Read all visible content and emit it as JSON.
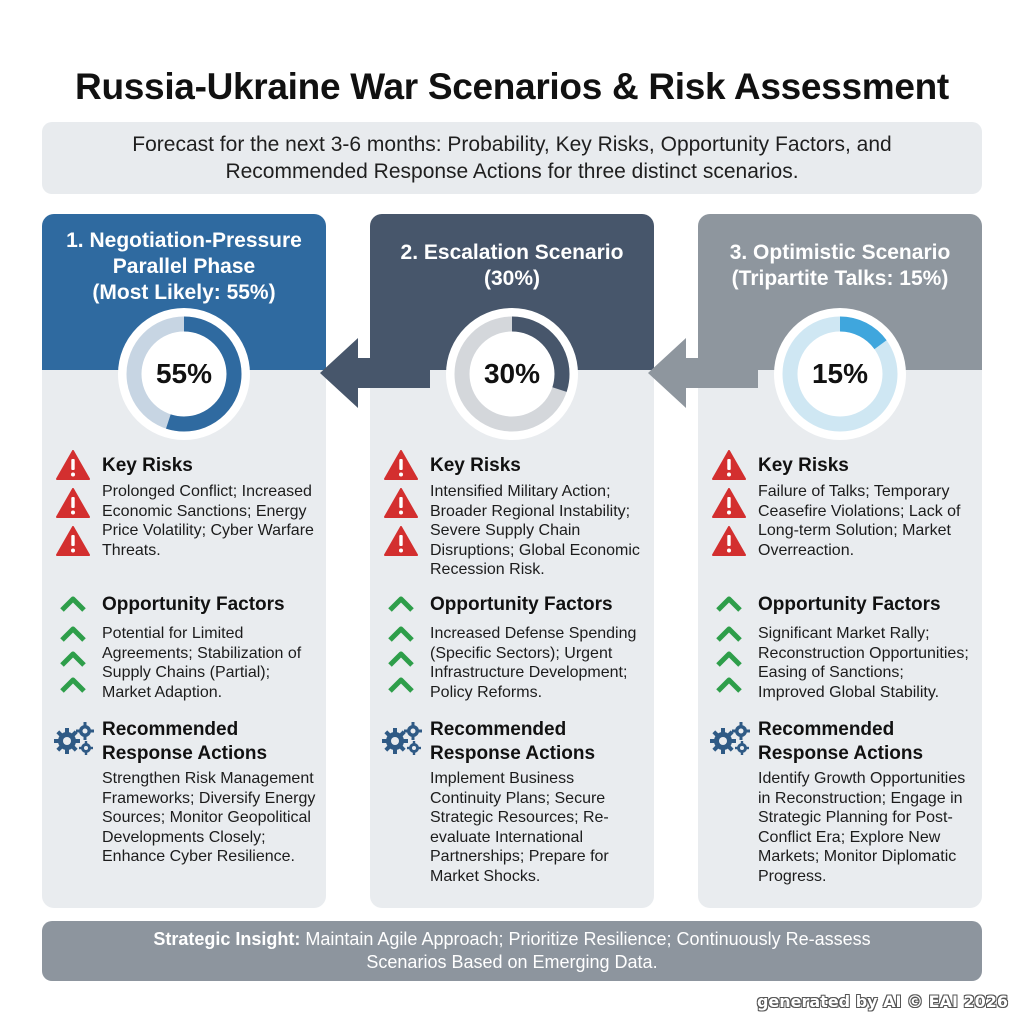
{
  "title": "Russia-Ukraine War Scenarios & Risk Assessment",
  "subtitle": "Forecast for the next 3-6 months: Probability, Key Risks, Opportunity Factors, and Recommended Response Actions for three distinct scenarios.",
  "colors": {
    "scenario1": "#2f6aa0",
    "scenario2": "#47566b",
    "scenario3": "#8e969e",
    "risk_icon": "#d32f2f",
    "opportunity_icon": "#2e9e4a",
    "gear_icon": "#2f5a85"
  },
  "scenarios": [
    {
      "header_lines": [
        "1. Negotiation-Pressure",
        "Parallel Phase",
        "(Most Likely: 55%)"
      ],
      "percent_label": "55%",
      "probability": 55,
      "key_risks_title": "Key Risks",
      "key_risks": "Prolonged Conflict; Increased Economic Sanctions; Energy Price Volatility; Cyber Warfare Threats.",
      "opportunity_title": "Opportunity Factors",
      "opportunities": "Potential for Limited Agreements; Stabilization of Supply Chains (Partial); Market Adaption.",
      "actions_title_1": "Recommended",
      "actions_title_2": "Response Actions",
      "actions": "Strengthen Risk Management Frameworks; Diversify Energy Sources; Monitor Geopolitical Developments Closely; Enhance Cyber Resilience."
    },
    {
      "header_lines": [
        "2. Escalation Scenario",
        "(30%)"
      ],
      "percent_label": "30%",
      "probability": 30,
      "key_risks_title": "Key Risks",
      "key_risks": "Intensified Military Action; Broader Regional Instability; Severe Supply Chain Disruptions; Global Economic Recession Risk.",
      "opportunity_title": "Opportunity Factors",
      "opportunities": "Increased Defense Spending (Specific Sectors); Urgent Infrastructure Development; Policy Reforms.",
      "actions_title_1": "Recommended",
      "actions_title_2": "Response Actions",
      "actions": "Implement Business Continuity Plans; Secure Strategic Resources; Re-evaluate International Partnerships; Prepare for Market Shocks."
    },
    {
      "header_lines": [
        "3. Optimistic Scenario",
        "(Tripartite Talks: 15%)"
      ],
      "percent_label": "15%",
      "probability": 15,
      "key_risks_title": "Key Risks",
      "key_risks": "Failure of Talks; Temporary Ceasefire Violations; Lack of Long-term Solution; Market Overreaction.",
      "opportunity_title": "Opportunity Factors",
      "opportunities": "Significant Market Rally; Reconstruction Opportunities; Easing of Sanctions; Improved Global Stability.",
      "actions_title_1": "Recommended",
      "actions_title_2": "Response Actions",
      "actions": "Identify Growth Opportunities in Reconstruction; Engage in Strategic Planning for Post-Conflict Era; Explore New Markets; Monitor Diplomatic Progress."
    }
  ],
  "insight": {
    "label": "Strategic Insight:",
    "text": " Maintain Agile Approach; Prioritize Resilience; Continuously Re-assess Scenarios Based on Emerging Data."
  },
  "credit": "generated by AI © EAI 2026"
}
